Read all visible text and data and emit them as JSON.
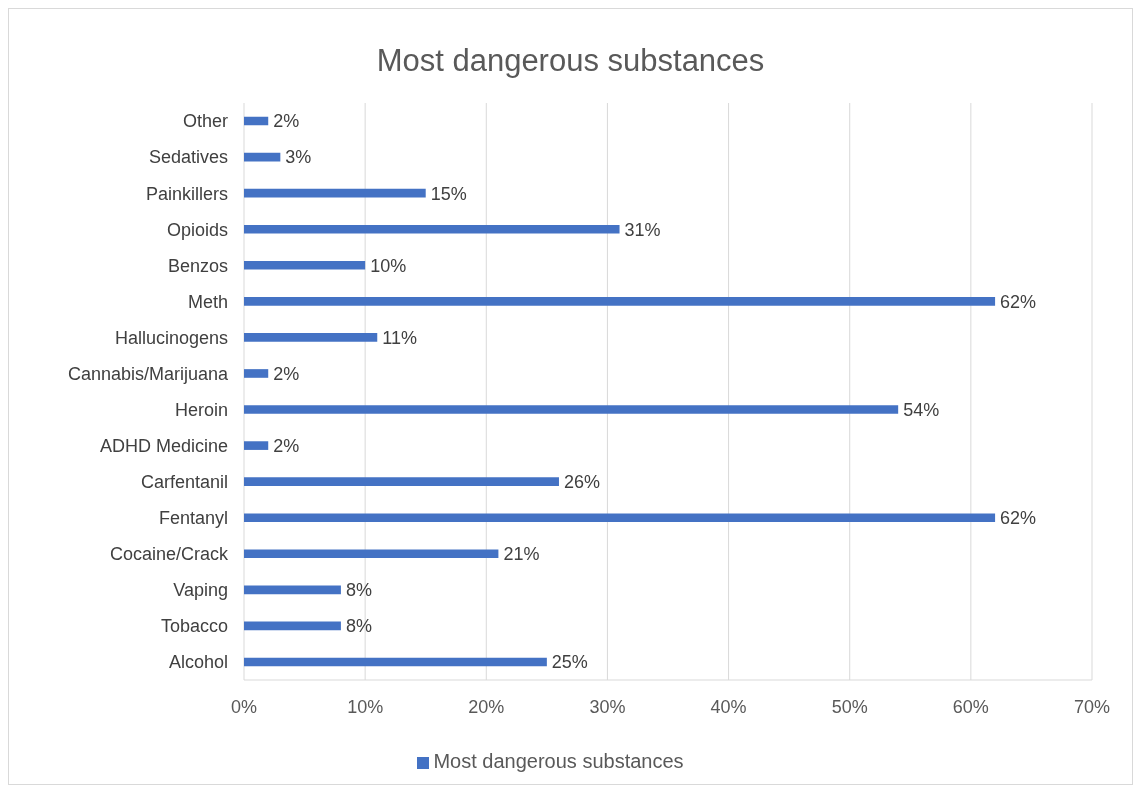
{
  "chart_data": {
    "type": "bar",
    "orientation": "horizontal",
    "title": "Most dangerous substances",
    "categories": [
      "Other",
      "Sedatives",
      "Painkillers",
      "Opioids",
      "Benzos",
      "Meth",
      "Hallucinogens",
      "Cannabis/Marijuana",
      "Heroin",
      "ADHD Medicine",
      "Carfentanil",
      "Fentanyl",
      "Cocaine/Crack",
      "Vaping",
      "Tobacco",
      "Alcohol"
    ],
    "series": [
      {
        "name": "Most dangerous substances",
        "color": "#4472c4",
        "values": [
          2,
          3,
          15,
          31,
          10,
          62,
          11,
          2,
          54,
          2,
          26,
          62,
          21,
          8,
          8,
          25
        ],
        "value_labels": [
          "2%",
          "3%",
          "15%",
          "31%",
          "10%",
          "62%",
          "11%",
          "2%",
          "54%",
          "2%",
          "26%",
          "62%",
          "21%",
          "8%",
          "8%",
          "25%"
        ]
      }
    ],
    "xlim": [
      0,
      70
    ],
    "xticks": [
      {
        "value": 0,
        "label": "0%"
      },
      {
        "value": 10,
        "label": "10%"
      },
      {
        "value": 20,
        "label": "20%"
      },
      {
        "value": 30,
        "label": "30%"
      },
      {
        "value": 40,
        "label": "40%"
      },
      {
        "value": 50,
        "label": "50%"
      },
      {
        "value": 60,
        "label": "60%"
      },
      {
        "value": 70,
        "label": "70%"
      }
    ],
    "grid": "x",
    "legend": "bottom"
  }
}
